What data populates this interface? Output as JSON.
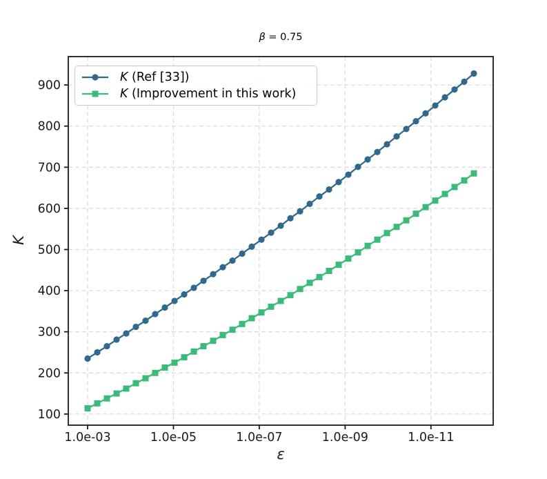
{
  "figure": {
    "title_math": "β",
    "title_rest": " = 0.75"
  },
  "legend": {
    "items": [
      {
        "label_math": "K",
        "label_rest": " (Ref [33])"
      },
      {
        "label_math": "K",
        "label_rest": " (Improvement in this work)"
      }
    ]
  },
  "chart_data": {
    "type": "line",
    "title": "β = 0.75",
    "xlabel": "ε",
    "ylabel": "K",
    "x_scale": "log",
    "grid": true,
    "legend_position": "upper left",
    "xlim_log10": [
      -2.55,
      -12.45
    ],
    "ylim": [
      73,
      969
    ],
    "xticks_log10": [
      -3,
      -5,
      -7,
      -9,
      -11
    ],
    "xtick_labels": [
      "1.0e-03",
      "1.0e-05",
      "1.0e-07",
      "1.0e-09",
      "1.0e-11"
    ],
    "yticks": [
      100,
      200,
      300,
      400,
      500,
      600,
      700,
      800,
      900
    ],
    "x_log10_eps": [
      -3.0,
      -3.225,
      -3.45,
      -3.675,
      -3.9,
      -4.125,
      -4.35,
      -4.575,
      -4.8,
      -5.025,
      -5.25,
      -5.475,
      -5.7,
      -5.925,
      -6.15,
      -6.375,
      -6.6,
      -6.825,
      -7.05,
      -7.275,
      -7.5,
      -7.725,
      -7.95,
      -8.175,
      -8.4,
      -8.625,
      -8.85,
      -9.075,
      -9.3,
      -9.525,
      -9.75,
      -9.975,
      -10.2,
      -10.425,
      -10.65,
      -10.875,
      -11.1,
      -11.325,
      -11.55,
      -11.775,
      -12.0
    ],
    "series": [
      {
        "name": "K (Ref [33])",
        "marker": "circle",
        "color": "#31688e",
        "values": [
          235,
          250,
          265,
          281,
          296,
          312,
          327,
          343,
          359,
          375,
          391,
          407,
          424,
          440,
          457,
          473,
          490,
          507,
          524,
          541,
          558,
          576,
          593,
          611,
          629,
          646,
          664,
          682,
          701,
          719,
          737,
          756,
          775,
          793,
          812,
          831,
          850,
          870,
          889,
          908,
          928
        ]
      },
      {
        "name": "K (Improvement in this work)",
        "marker": "square",
        "color": "#3abb77",
        "values": [
          114,
          126,
          138,
          150,
          162,
          175,
          187,
          200,
          213,
          225,
          238,
          252,
          265,
          278,
          292,
          305,
          319,
          333,
          347,
          361,
          375,
          389,
          404,
          419,
          433,
          448,
          463,
          478,
          493,
          509,
          524,
          540,
          555,
          571,
          587,
          603,
          619,
          635,
          652,
          668,
          685
        ]
      }
    ],
    "style": {
      "grid_color": "#dcdcdc",
      "spine_color": "#1a1a1a",
      "background": "#ffffff"
    }
  }
}
